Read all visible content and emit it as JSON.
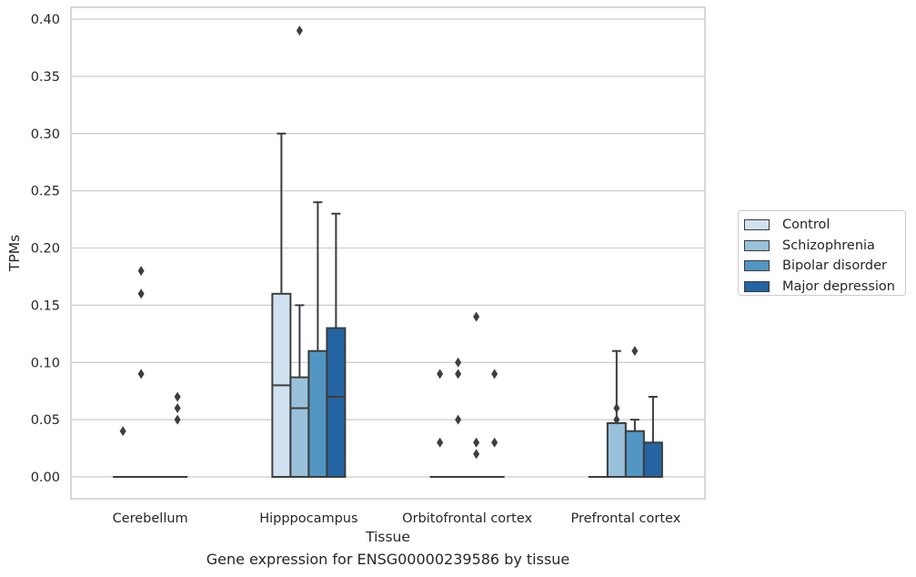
{
  "chart_data": {
    "type": "box",
    "xlabel": "Tissue",
    "ylabel": "TPMs",
    "caption": "Gene expression for ENSG00000239586 by tissue",
    "ylim": [
      -0.02,
      0.41
    ],
    "yticks": [
      "0.00",
      "0.05",
      "0.10",
      "0.15",
      "0.20",
      "0.25",
      "0.30",
      "0.35",
      "0.40"
    ],
    "yticks_values": [
      0,
      0.05,
      0.1,
      0.15,
      0.2,
      0.25,
      0.3,
      0.35,
      0.4
    ],
    "grid": true,
    "legend_position": "right",
    "categories": [
      "Cerebellum",
      "Hipppocampus",
      "Orbitofrontal cortex",
      "Prefrontal cortex"
    ],
    "series": [
      {
        "name": "Control",
        "color": "#d1e1f0",
        "boxes": [
          {
            "q1": 0,
            "median": 0,
            "q3": 0,
            "whislo": 0,
            "whishi": 0,
            "fliers": [
              0.04
            ]
          },
          {
            "q1": 0,
            "median": 0.08,
            "q3": 0.16,
            "whislo": 0,
            "whishi": 0.3,
            "fliers": []
          },
          {
            "q1": 0,
            "median": 0,
            "q3": 0,
            "whislo": 0,
            "whishi": 0,
            "fliers": [
              0.03,
              0.09
            ]
          },
          {
            "q1": 0,
            "median": 0,
            "q3": 0,
            "whislo": 0,
            "whishi": 0,
            "fliers": []
          }
        ]
      },
      {
        "name": "Schizophrenia",
        "color": "#9ac1dc",
        "boxes": [
          {
            "q1": 0,
            "median": 0,
            "q3": 0,
            "whislo": 0,
            "whishi": 0,
            "fliers": [
              0.09,
              0.16,
              0.18
            ]
          },
          {
            "q1": 0,
            "median": 0.06,
            "q3": 0.087,
            "whislo": 0,
            "whishi": 0.15,
            "fliers": [
              0.39
            ]
          },
          {
            "q1": 0,
            "median": 0,
            "q3": 0,
            "whislo": 0,
            "whishi": 0,
            "fliers": [
              0.05,
              0.09,
              0.1
            ]
          },
          {
            "q1": 0,
            "median": 0,
            "q3": 0.047,
            "whislo": 0,
            "whishi": 0.11,
            "fliers": [
              0.05,
              0.06
            ]
          }
        ]
      },
      {
        "name": "Bipolar disorder",
        "color": "#5296c4",
        "boxes": [
          {
            "q1": 0,
            "median": 0,
            "q3": 0,
            "whislo": 0,
            "whishi": 0,
            "fliers": []
          },
          {
            "q1": 0,
            "median": 0,
            "q3": 0.11,
            "whislo": 0,
            "whishi": 0.24,
            "fliers": []
          },
          {
            "q1": 0,
            "median": 0,
            "q3": 0,
            "whislo": 0,
            "whishi": 0,
            "fliers": [
              0.02,
              0.03,
              0.14
            ]
          },
          {
            "q1": 0,
            "median": 0,
            "q3": 0.04,
            "whislo": 0,
            "whishi": 0.05,
            "fliers": [
              0.11
            ]
          }
        ]
      },
      {
        "name": "Major depression",
        "color": "#2464a3",
        "boxes": [
          {
            "q1": 0,
            "median": 0,
            "q3": 0,
            "whislo": 0,
            "whishi": 0,
            "fliers": [
              0.05,
              0.06,
              0.07
            ]
          },
          {
            "q1": 0,
            "median": 0.07,
            "q3": 0.13,
            "whislo": 0,
            "whishi": 0.23,
            "fliers": []
          },
          {
            "q1": 0,
            "median": 0,
            "q3": 0,
            "whislo": 0,
            "whishi": 0,
            "fliers": [
              0.03,
              0.09
            ]
          },
          {
            "q1": 0,
            "median": 0,
            "q3": 0.03,
            "whislo": 0,
            "whishi": 0.07,
            "fliers": []
          }
        ]
      }
    ]
  }
}
